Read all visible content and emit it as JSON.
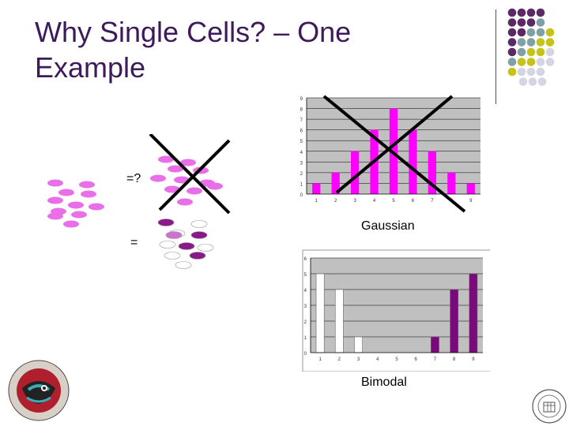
{
  "slide": {
    "title_line1": "Why Single Cells? – One",
    "title_line2": "Example"
  },
  "labels": {
    "equals_question": "=?",
    "equals": "=",
    "gaussian": "Gaussian",
    "bimodal": "Bimodal"
  },
  "colors": {
    "title": "#3d1a5b",
    "magenta": "#ff00ff",
    "purple": "#7a0a7a",
    "pink_cell": "#e96fe9",
    "olive_dot": "#c5c31a",
    "teal_dot": "#7fa0a4",
    "plum_dot": "#5b2a66",
    "lavender_dot": "#d4d4e4"
  },
  "chart_data": [
    {
      "type": "bar",
      "categories": [
        "1",
        "2",
        "3",
        "4",
        "5",
        "6",
        "7",
        "8",
        "9"
      ],
      "x_tick_labels_visible": [
        "1",
        "2",
        "3",
        "4",
        "5",
        "6",
        "7",
        "8",
        "9"
      ],
      "values": [
        1,
        2,
        4,
        6,
        8,
        6,
        4,
        2,
        1
      ],
      "title": "",
      "xlabel": "",
      "ylabel": "",
      "ylim": [
        0,
        9
      ],
      "yticks": [
        "0",
        "1",
        "2",
        "3",
        "4",
        "5",
        "6",
        "7",
        "8",
        "9"
      ],
      "bar_color": "#ff00ff",
      "grid": true
    },
    {
      "type": "bar",
      "categories": [
        "1",
        "2",
        "3",
        "4",
        "5",
        "6",
        "7",
        "8",
        "9"
      ],
      "values": [
        5,
        4,
        1,
        0,
        0,
        0,
        1,
        4,
        5
      ],
      "bar_colors": [
        "#ffffff",
        "#ffffff",
        "#ffffff",
        "#ffffff",
        "#ffffff",
        "#ffffff",
        "#7a0a7a",
        "#7a0a7a",
        "#7a0a7a"
      ],
      "title": "",
      "xlabel": "",
      "ylabel": "",
      "ylim": [
        0,
        6
      ],
      "yticks": [
        "0",
        "1",
        "2",
        "3",
        "4",
        "5",
        "6"
      ],
      "grid": true
    }
  ]
}
